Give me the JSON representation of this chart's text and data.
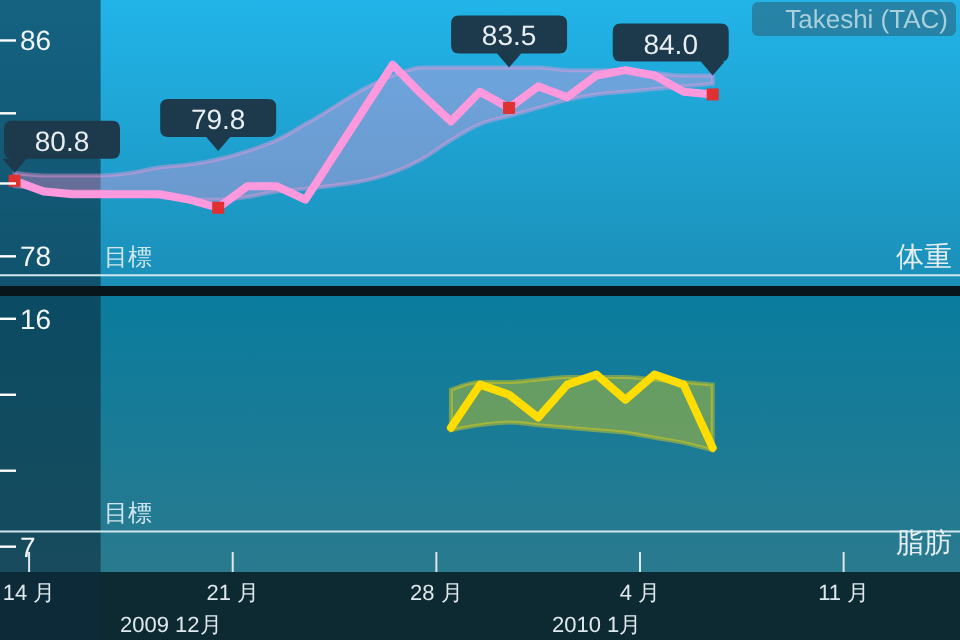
{
  "chart_data": [
    {
      "type": "line",
      "title": "体重",
      "annotations": [
        "Takeshi (TAC)"
      ],
      "tick_labels": "y",
      "x": [
        "2009-12-13T12:00",
        "2009-12-14T12:00",
        "2009-12-15T12:00",
        "2009-12-16T12:00",
        "2009-12-17T12:00",
        "2009-12-18T12:00",
        "2009-12-19T12:00",
        "2009-12-20T12:00",
        "2009-12-21T12:00",
        "2009-12-22T12:00",
        "2009-12-23T12:00",
        "2009-12-26T12:00",
        "2009-12-27T12:00",
        "2009-12-28T12:00",
        "2009-12-29T12:00",
        "2009-12-30T12:00",
        "2009-12-31T12:00",
        "2010-01-01T12:00",
        "2010-01-02T12:00",
        "2010-01-03T12:00",
        "2010-01-04T12:00",
        "2010-01-05T12:00",
        "2010-01-06T12:00"
      ],
      "xlim": [
        "2009-12-13",
        "2010-01-15"
      ],
      "ylim": [
        76.9,
        87.5
      ],
      "yticks": [
        78,
        {
          "value": 80.7,
          "label": null
        },
        {
          "value": 83.3,
          "label": null
        },
        86
      ],
      "ref_lines": [
        {
          "axis": "y",
          "value": 77.3,
          "label": "目標",
          "color": "#cfe6ee"
        }
      ],
      "bands": [
        {
          "axis": "x",
          "from": "2009-12-13",
          "to": "2009-12-16T11:00",
          "color": "#0b2c3c"
        }
      ],
      "series": [
        {
          "color": "#ff99dd",
          "values": [
            80.8,
            80.4,
            80.3,
            80.3,
            80.3,
            80.3,
            80.1,
            79.8,
            80.6,
            80.6,
            80.1,
            85.1,
            84.0,
            83.0,
            84.1,
            83.5,
            84.3,
            83.9,
            84.7,
            84.9,
            84.7,
            84.1,
            84.0
          ],
          "lower": [
            80.6,
            80.5,
            80.4,
            80.4,
            80.3,
            80.2,
            80.1,
            80.1,
            80.2,
            80.4,
            80.5,
            81.1,
            81.6,
            82.3,
            82.9,
            83.2,
            83.5,
            83.8,
            84.0,
            84.1,
            84.2,
            84.3,
            84.4
          ],
          "upper": [
            81.1,
            81.0,
            81.0,
            81.0,
            81.1,
            81.3,
            81.4,
            81.6,
            81.9,
            82.3,
            82.9,
            84.7,
            85.0,
            85.0,
            85.0,
            85.0,
            85.0,
            84.9,
            84.9,
            84.9,
            84.8,
            84.7,
            84.7
          ],
          "value_labels": [
            "80.8",
            null,
            null,
            null,
            null,
            null,
            null,
            "79.8",
            null,
            null,
            null,
            null,
            null,
            null,
            null,
            "83.5",
            null,
            null,
            null,
            null,
            null,
            null,
            "84.0"
          ]
        }
      ]
    },
    {
      "type": "line",
      "title": "脂肪",
      "annotations": [
        "2009 12月",
        "2010 1月"
      ],
      "x": [
        "2009-12-28T12:00",
        "2009-12-29T12:00",
        "2009-12-30T12:00",
        "2009-12-31T12:00",
        "2010-01-01T12:00",
        "2010-01-02T12:00",
        "2010-01-03T12:00",
        "2010-01-04T12:00",
        "2010-01-05T12:00",
        "2010-01-06T12:00"
      ],
      "xlim": [
        "2009-12-13",
        "2010-01-15"
      ],
      "xticks": [
        {
          "value": "2009-12-14",
          "label": "14 月"
        },
        {
          "value": "2009-12-21",
          "label": "21 月"
        },
        {
          "value": "2009-12-28",
          "label": "28 月"
        },
        {
          "value": "2010-01-04",
          "label": "4 月"
        },
        {
          "value": "2010-01-11",
          "label": "11 月"
        }
      ],
      "ylim": [
        6.0,
        16.9
      ],
      "yticks": [
        7,
        {
          "value": 10,
          "label": null
        },
        {
          "value": 13,
          "label": null
        },
        16
      ],
      "ref_lines": [
        {
          "axis": "y",
          "value": 7.6,
          "label": "目標",
          "color": "#cfe6ee"
        }
      ],
      "bands": [
        {
          "axis": "x",
          "from": "2009-12-13",
          "to": "2009-12-16T11:00",
          "color": "#0b2c3c"
        }
      ],
      "series": [
        {
          "color": "#ffdd00",
          "values": [
            11.7,
            13.4,
            13.0,
            12.1,
            13.4,
            13.8,
            12.8,
            13.8,
            13.4,
            10.9
          ],
          "lower": [
            11.6,
            11.8,
            11.9,
            11.8,
            11.7,
            11.6,
            11.5,
            11.3,
            11.1,
            10.8
          ],
          "upper": [
            13.2,
            13.5,
            13.5,
            13.6,
            13.7,
            13.7,
            13.7,
            13.6,
            13.5,
            13.4
          ]
        }
      ]
    }
  ]
}
